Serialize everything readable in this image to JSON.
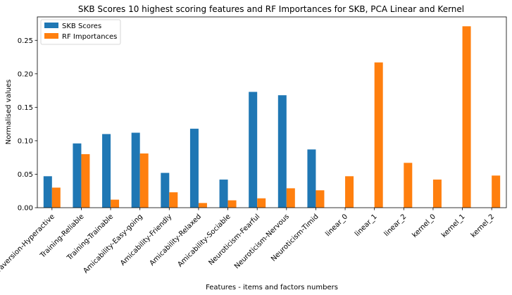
{
  "chart_data": {
    "type": "bar",
    "title": "SKB Scores 10 highest scoring features and RF Importances for SKB, PCA Linear and Kernel",
    "xlabel": "Features - items and factors numbers",
    "ylabel": "Normalised values",
    "ylim": [
      0,
      0.285
    ],
    "yticks": [
      "0.00",
      "0.05",
      "0.10",
      "0.15",
      "0.20",
      "0.25"
    ],
    "grid": false,
    "legend_position": "top-left",
    "categories": [
      "Extraversion-Hyperactive",
      "Training-Reliable",
      "Training-Trainable",
      "Amicability-Easy-going",
      "Amicability-Friendly",
      "Amicability-Relaxed",
      "Amicability-Sociable",
      "Neuroticism-Fearful",
      "Neuroticism-Nervous",
      "Neuroticism-Timid",
      "linear_0",
      "linear_1",
      "linear_2",
      "kernel_0",
      "kernel_1",
      "kernel_2"
    ],
    "series": [
      {
        "name": "SKB Scores",
        "color": "#1f77b4",
        "values": [
          0.047,
          0.096,
          0.11,
          0.112,
          0.052,
          0.118,
          0.042,
          0.173,
          0.168,
          0.087,
          null,
          null,
          null,
          null,
          null,
          null
        ]
      },
      {
        "name": "RF Importances",
        "color": "#ff7f0e",
        "values": [
          0.03,
          0.08,
          0.012,
          0.081,
          0.023,
          0.007,
          0.011,
          0.014,
          0.029,
          0.026,
          0.047,
          0.217,
          0.067,
          0.042,
          0.271,
          0.048
        ]
      }
    ]
  }
}
